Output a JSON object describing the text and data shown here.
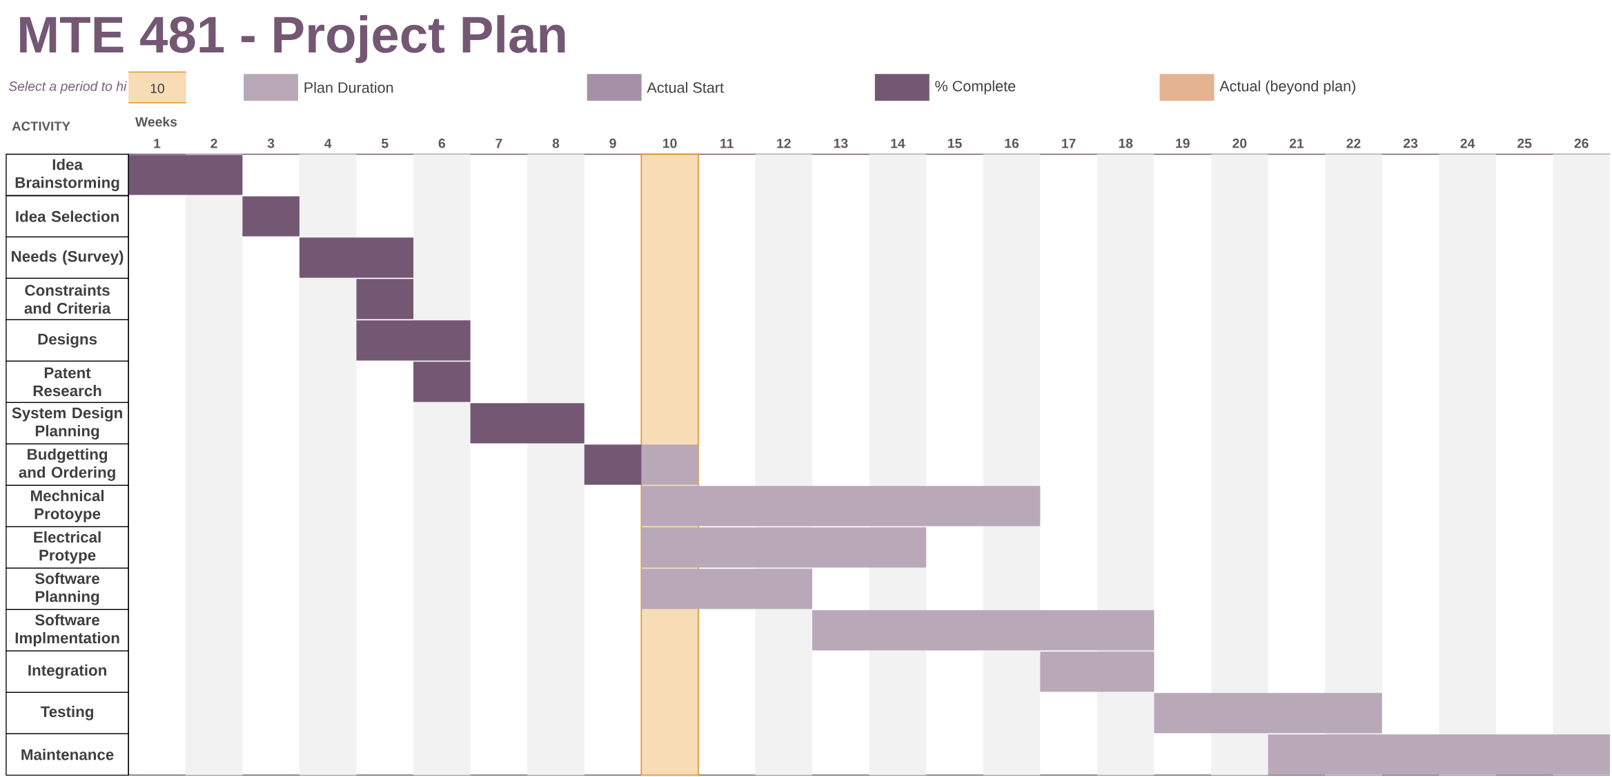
{
  "chart_data": {
    "type": "bar",
    "orientation": "horizontal",
    "title": "MTE 481 - Project Plan",
    "xlabel": "Weeks",
    "ylabel": "ACTIVITY",
    "categories": [
      "Idea Brainstorming",
      "Idea Selection",
      "Needs (Survey)",
      "Constraints and Criteria",
      "Designs",
      "Patent Research",
      "System Design Planning",
      "Budgetting and Ordering",
      "Mechnical Protoype",
      "Electrical Protype",
      "Software Planning",
      "Software Implmentation",
      "Integration",
      "Testing",
      "Maintenance"
    ],
    "xlim": [
      0.5,
      26.5
    ],
    "xticks": [
      1,
      2,
      3,
      4,
      5,
      6,
      7,
      8,
      9,
      10,
      11,
      12,
      13,
      14,
      15,
      16,
      17,
      18,
      19,
      20,
      21,
      22,
      23,
      24,
      25,
      26
    ],
    "legend": "top",
    "series": [
      {
        "name": "Plan Duration",
        "color": "#b8a8b8",
        "base": [
          null,
          null,
          null,
          null,
          null,
          null,
          null,
          9.5,
          9.5,
          9.5,
          9.5,
          12.5,
          16.5,
          18.5,
          20.5
        ],
        "values": [
          null,
          null,
          null,
          null,
          null,
          null,
          null,
          1,
          7,
          5,
          3,
          6,
          2,
          4,
          6
        ]
      },
      {
        "name": "Actual Start",
        "color": "#a590a5",
        "values": [
          null,
          null,
          null,
          null,
          null,
          null,
          null,
          null,
          null,
          null,
          null,
          null,
          null,
          null,
          null
        ]
      },
      {
        "name": "% Complete",
        "color": "#735773",
        "base": [
          0.5,
          2.5,
          3.5,
          4.5,
          4.5,
          5.5,
          6.5,
          8.5,
          null,
          null,
          null,
          null,
          null,
          null,
          null
        ],
        "values": [
          2,
          1,
          2,
          1,
          2,
          1,
          2,
          1,
          null,
          null,
          null,
          null,
          null,
          null,
          null
        ]
      },
      {
        "name": "Actual (beyond plan)",
        "color": "#e3b48f",
        "values": [
          null,
          null,
          null,
          null,
          null,
          null,
          null,
          null,
          null,
          null,
          null,
          null,
          null,
          null,
          null
        ]
      }
    ],
    "bands": [
      {
        "axis": "x",
        "from": 1.5,
        "to": 2.5,
        "color": "#f2f2f2"
      },
      {
        "axis": "x",
        "from": 3.5,
        "to": 4.5,
        "color": "#f2f2f2"
      },
      {
        "axis": "x",
        "from": 5.5,
        "to": 6.5,
        "color": "#f2f2f2"
      },
      {
        "axis": "x",
        "from": 7.5,
        "to": 8.5,
        "color": "#f2f2f2"
      },
      {
        "axis": "x",
        "from": 11.5,
        "to": 12.5,
        "color": "#f2f2f2"
      },
      {
        "axis": "x",
        "from": 13.5,
        "to": 14.5,
        "color": "#f2f2f2"
      },
      {
        "axis": "x",
        "from": 15.5,
        "to": 16.5,
        "color": "#f2f2f2"
      },
      {
        "axis": "x",
        "from": 17.5,
        "to": 18.5,
        "color": "#f2f2f2"
      },
      {
        "axis": "x",
        "from": 19.5,
        "to": 20.5,
        "color": "#f2f2f2"
      },
      {
        "axis": "x",
        "from": 21.5,
        "to": 22.5,
        "color": "#f2f2f2"
      },
      {
        "axis": "x",
        "from": 23.5,
        "to": 24.5,
        "color": "#f2f2f2"
      },
      {
        "axis": "x",
        "from": 25.5,
        "to": 26.5,
        "color": "#f2f2f2"
      },
      {
        "axis": "x",
        "from": 9.5,
        "to": 10.5,
        "color": "#f8dcb6"
      }
    ],
    "annotations": [
      "Select a period to hi",
      "10"
    ]
  }
}
